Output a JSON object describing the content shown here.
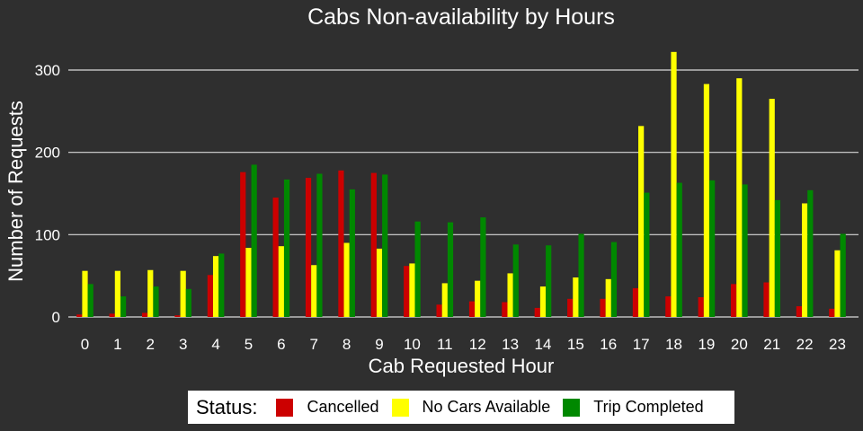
{
  "chart_data": {
    "type": "bar",
    "title": "Cabs Non-availability by Hours",
    "xlabel": "Cab Requested Hour",
    "ylabel": "Number of Requests",
    "ylim": [
      0,
      330
    ],
    "yticks": [
      0,
      100,
      200,
      300
    ],
    "grid": true,
    "legend_position": "bottom",
    "legend_title": "Status:",
    "categories": [
      "0",
      "1",
      "2",
      "3",
      "4",
      "5",
      "6",
      "7",
      "8",
      "9",
      "10",
      "11",
      "12",
      "13",
      "14",
      "15",
      "16",
      "17",
      "18",
      "19",
      "20",
      "21",
      "22",
      "23"
    ],
    "series": [
      {
        "name": "Cancelled",
        "color": "#cc0000",
        "values": [
          3,
          4,
          5,
          2,
          51,
          176,
          145,
          169,
          178,
          175,
          62,
          15,
          19,
          18,
          11,
          22,
          22,
          35,
          25,
          24,
          40,
          42,
          13,
          10
        ]
      },
      {
        "name": "No Cars Available",
        "color": "#ffff00",
        "values": [
          56,
          56,
          57,
          56,
          74,
          84,
          86,
          63,
          90,
          83,
          65,
          41,
          44,
          53,
          37,
          48,
          46,
          232,
          322,
          283,
          290,
          265,
          138,
          81
        ]
      },
      {
        "name": "Trip Completed",
        "color": "#008800",
        "values": [
          40,
          25,
          37,
          34,
          77,
          185,
          167,
          174,
          155,
          173,
          116,
          115,
          121,
          88,
          87,
          101,
          91,
          151,
          163,
          166,
          161,
          142,
          154,
          101
        ]
      }
    ]
  }
}
